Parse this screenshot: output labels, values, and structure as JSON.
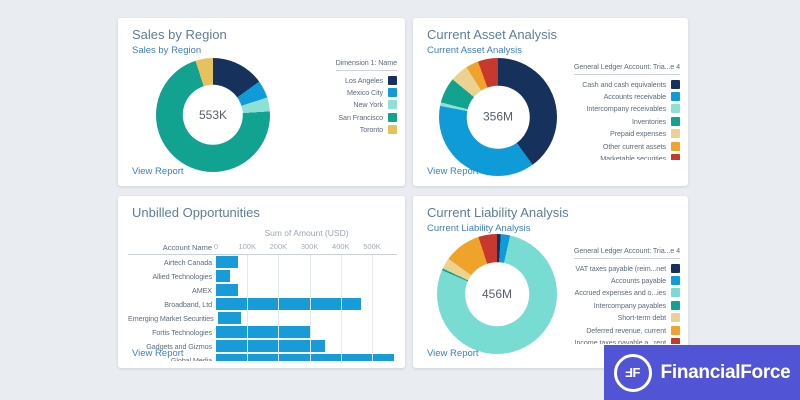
{
  "page": {
    "background_color": "#e9edf2"
  },
  "cards": [
    {
      "title": "Sales by Region",
      "subtitle": "Sales by Region",
      "view_report": "View Report",
      "chart": {
        "type": "donut",
        "center_label": "553K",
        "legend_title": "Dimension 1: Name",
        "segments": [
          {
            "label": "Los Angeles",
            "color": "#16325c",
            "pct": 15
          },
          {
            "label": "Mexico City",
            "color": "#0f9bd7",
            "pct": 5
          },
          {
            "label": "New York",
            "color": "#8fe0d4",
            "pct": 4
          },
          {
            "label": "San Francisco",
            "color": "#12a390",
            "pct": 71
          },
          {
            "label": "Toronto",
            "color": "#e6c25f",
            "pct": 5
          }
        ]
      }
    },
    {
      "title": "Current Asset Analysis",
      "subtitle": "Current Asset Analysis",
      "view_report": "View Report",
      "chart": {
        "type": "donut",
        "center_label": "356M",
        "legend_title": "General Ledger Account: Tria...e 4",
        "segments": [
          {
            "label": "Cash and cash equivalents",
            "color": "#16325c",
            "pct": 40
          },
          {
            "label": "Accounts receivable",
            "color": "#0f9bd7",
            "pct": 38
          },
          {
            "label": "Intercompany receivables",
            "color": "#8fe0d4",
            "pct": 1
          },
          {
            "label": "Inventories",
            "color": "#12a390",
            "pct": 7
          },
          {
            "label": "Prepaid expenses",
            "color": "#ecd291",
            "pct": 5
          },
          {
            "label": "Other current assets",
            "color": "#f0a32a",
            "pct": 3.5
          },
          {
            "label": "Marketable securities",
            "color": "#c7392f",
            "pct": 5.5
          }
        ]
      }
    },
    {
      "title": "Unbilled Opportunities",
      "view_report": "View Report",
      "chart": {
        "type": "bar",
        "xlabel": "Sum of Amount (USD)",
        "col_header": "Account Name",
        "ticks": [
          "0",
          "100K",
          "200K",
          "300K",
          "400K",
          "500K"
        ],
        "tick_step_k": 100,
        "max_k": 580,
        "bar_color": "#189cd9",
        "rows": [
          {
            "label": "Airtech Canada",
            "value_k": 70
          },
          {
            "label": "Allied Technologies",
            "value_k": 45
          },
          {
            "label": "AMEX",
            "value_k": 70
          },
          {
            "label": "Broadband, Ltd",
            "value_k": 465
          },
          {
            "label": "Emerging Market Securities",
            "value_k": 75
          },
          {
            "label": "Fortis Technologies",
            "value_k": 305
          },
          {
            "label": "Gadgets and Gizmos",
            "value_k": 350
          },
          {
            "label": "Global Media",
            "value_k": 570
          }
        ]
      }
    },
    {
      "title": "Current Liability Analysis",
      "subtitle": "Current Liability Analysis",
      "view_report": "View Report",
      "chart": {
        "type": "donut",
        "center_label": "456M",
        "legend_title": "General Ledger Account: Tria...e 4",
        "segments": [
          {
            "label": "VAT taxes payable (reim...net",
            "color": "#16325c",
            "pct": 1
          },
          {
            "label": "Accounts payable",
            "color": "#0f9bd7",
            "pct": 2.5
          },
          {
            "label": "Accrued expenses and o...ies",
            "color": "#78dcd3",
            "pct": 78
          },
          {
            "label": "Intercompany payables",
            "color": "#12a390",
            "pct": 0.5
          },
          {
            "label": "Short-term debt",
            "color": "#ecd291",
            "pct": 3
          },
          {
            "label": "Deferred revenue, current",
            "color": "#f0a32a",
            "pct": 10
          },
          {
            "label": "Income taxes payable a...rent",
            "color": "#c7392f",
            "pct": 5
          }
        ]
      }
    }
  ],
  "logo": {
    "monogram": "FF",
    "text": "FinancialForce",
    "background_color": "#5154d4"
  },
  "chart_data": [
    {
      "type": "pie",
      "title": "Sales by Region",
      "center_total": "553K",
      "legend_title": "Dimension 1: Name",
      "labels": [
        "Los Angeles",
        "Mexico City",
        "New York",
        "San Francisco",
        "Toronto"
      ],
      "values_pct": [
        15,
        5,
        4,
        71,
        5
      ],
      "colors": [
        "#16325c",
        "#0f9bd7",
        "#8fe0d4",
        "#12a390",
        "#e6c25f"
      ],
      "legend_position": "right"
    },
    {
      "type": "pie",
      "title": "Current Asset Analysis",
      "center_total": "356M",
      "legend_title": "General Ledger Account: Tria...e 4",
      "labels": [
        "Cash and cash equivalents",
        "Accounts receivable",
        "Intercompany receivables",
        "Inventories",
        "Prepaid expenses",
        "Other current assets",
        "Marketable securities"
      ],
      "values_pct": [
        40,
        38,
        1,
        7,
        5,
        3.5,
        5.5
      ],
      "colors": [
        "#16325c",
        "#0f9bd7",
        "#8fe0d4",
        "#12a390",
        "#ecd291",
        "#f0a32a",
        "#c7392f"
      ],
      "legend_position": "right"
    },
    {
      "type": "bar",
      "orientation": "horizontal",
      "title": "Unbilled Opportunities",
      "xlabel": "Sum of Amount (USD)",
      "ylabel": "Account Name",
      "categories": [
        "Airtech Canada",
        "Allied Technologies",
        "AMEX",
        "Broadband, Ltd",
        "Emerging Market Securities",
        "Fortis Technologies",
        "Gadgets and Gizmos",
        "Global Media"
      ],
      "values_usd_k": [
        70,
        45,
        70,
        465,
        75,
        305,
        350,
        570
      ],
      "xticks": [
        "0",
        "100K",
        "200K",
        "300K",
        "400K",
        "500K"
      ],
      "xlim_k": [
        0,
        580
      ],
      "grid": true,
      "bar_color": "#189cd9"
    },
    {
      "type": "pie",
      "title": "Current Liability Analysis",
      "center_total": "456M",
      "legend_title": "General Ledger Account: Tria...e 4",
      "labels": [
        "VAT taxes payable (reim...net",
        "Accounts payable",
        "Accrued expenses and o...ies",
        "Intercompany payables",
        "Short-term debt",
        "Deferred revenue, current",
        "Income taxes payable a...rent"
      ],
      "values_pct": [
        1,
        2.5,
        78,
        0.5,
        3,
        10,
        5
      ],
      "colors": [
        "#16325c",
        "#0f9bd7",
        "#78dcd3",
        "#12a390",
        "#ecd291",
        "#f0a32a",
        "#c7392f"
      ],
      "legend_position": "right"
    }
  ]
}
